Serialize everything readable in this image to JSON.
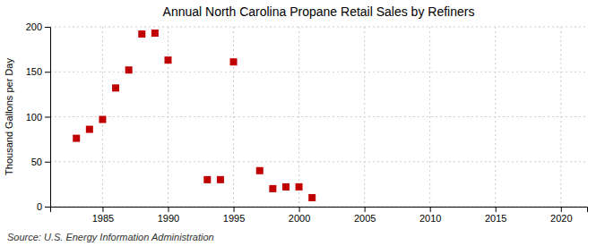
{
  "chart_data": {
    "type": "scatter",
    "title": "Annual North Carolina Propane Retail Sales by Refiners",
    "ylabel": "Thousand Gallons per Day",
    "annotations": [
      "Source: U.S. Energy Information Administration"
    ],
    "x": [
      1983,
      1984,
      1985,
      1986,
      1987,
      1988,
      1989,
      1990,
      1993,
      1994,
      1995,
      1997,
      1998,
      1999,
      2000,
      2001
    ],
    "values": [
      76,
      86,
      97,
      132,
      152,
      192,
      193,
      163,
      30,
      30,
      161,
      40,
      20,
      22,
      22,
      10
    ],
    "color": "#c00000",
    "marker": "square",
    "xlim": [
      1981,
      2022
    ],
    "xticks": [
      1985,
      1990,
      1995,
      2000,
      2005,
      2010,
      2015,
      2020
    ],
    "ylim": [
      0,
      200
    ],
    "yticks": [
      0,
      50,
      100,
      150,
      200
    ],
    "grid": true
  }
}
